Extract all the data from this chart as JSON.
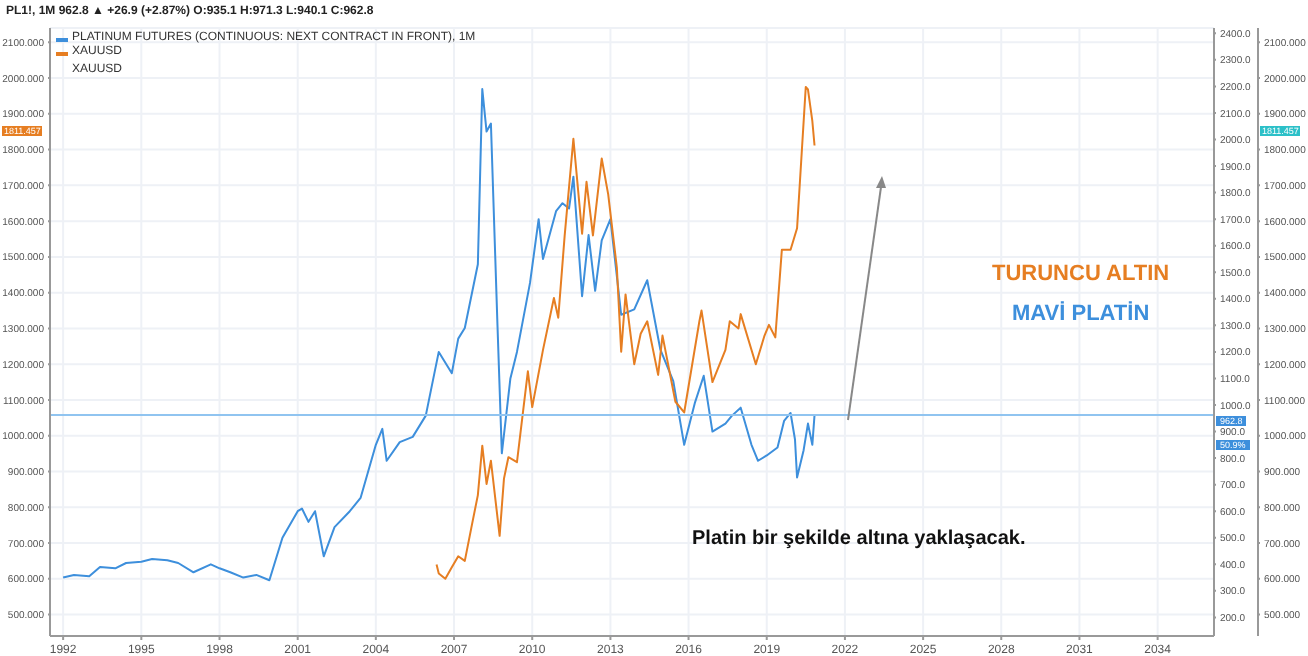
{
  "chart_data": {
    "type": "line",
    "subtitle": "PL1!, 1M 962.8 ▲ +26.9 (+2.87%) O:935.1 H:971.3 L:940.1 C:962.8",
    "xlim": [
      "1991-07",
      "2036-03"
    ],
    "xticks": [
      "1992",
      "1995",
      "1998",
      "2001",
      "2004",
      "2007",
      "2010",
      "2013",
      "2016",
      "2019",
      "2022",
      "2025",
      "2028",
      "2031",
      "2034"
    ],
    "ylim": [
      440,
      2140
    ],
    "yticks": [
      {
        "value": 500,
        "label": "500.000"
      },
      {
        "value": 600,
        "label": "600.000"
      },
      {
        "value": 700,
        "label": "700.000"
      },
      {
        "value": 800,
        "label": "800.000"
      },
      {
        "value": 900,
        "label": "900.000"
      },
      {
        "value": 1000,
        "label": "1000.000"
      },
      {
        "value": 1100,
        "label": "1100.000"
      },
      {
        "value": 1200,
        "label": "1200.000"
      },
      {
        "value": 1300,
        "label": "1300.000"
      },
      {
        "value": 1400,
        "label": "1400.000"
      },
      {
        "value": 1500,
        "label": "1500.000"
      },
      {
        "value": 1600,
        "label": "1600.000"
      },
      {
        "value": 1700,
        "label": "1700.000"
      },
      {
        "value": 1800,
        "label": "1800.000"
      },
      {
        "value": 1900,
        "label": "1900.000"
      },
      {
        "value": 2000,
        "label": "2000.000"
      },
      {
        "value": 2100,
        "label": "2100.000"
      }
    ],
    "y2lim": [
      130,
      2420
    ],
    "y2ticks": [
      {
        "value": 200,
        "label": "200.0"
      },
      {
        "value": 300,
        "label": "300.0"
      },
      {
        "value": 400,
        "label": "400.0"
      },
      {
        "value": 500,
        "label": "500.0"
      },
      {
        "value": 600,
        "label": "600.0"
      },
      {
        "value": 700,
        "label": "700.0"
      },
      {
        "value": 800,
        "label": "800.0"
      },
      {
        "value": 900,
        "label": "900.0"
      },
      {
        "value": 1000,
        "label": "1000.0"
      },
      {
        "value": 1100,
        "label": "1100.0"
      },
      {
        "value": 1200,
        "label": "1200.0"
      },
      {
        "value": 1300,
        "label": "1300.0"
      },
      {
        "value": 1400,
        "label": "1400.0"
      },
      {
        "value": 1500,
        "label": "1500.0"
      },
      {
        "value": 1600,
        "label": "1600.0"
      },
      {
        "value": 1700,
        "label": "1700.0"
      },
      {
        "value": 1800,
        "label": "1800.0"
      },
      {
        "value": 1900,
        "label": "1900.0"
      },
      {
        "value": 2000,
        "label": "2000.0"
      },
      {
        "value": 2100,
        "label": "2100.0"
      },
      {
        "value": 2200,
        "label": "2200.0"
      },
      {
        "value": 2300,
        "label": "2300.0"
      },
      {
        "value": 2400,
        "label": "2400.0"
      }
    ],
    "y3lim": [
      440,
      2140
    ],
    "y3ticks": [
      {
        "value": 500,
        "label": "500.000"
      },
      {
        "value": 600,
        "label": "600.000"
      },
      {
        "value": 700,
        "label": "700.000"
      },
      {
        "value": 800,
        "label": "800.000"
      },
      {
        "value": 900,
        "label": "900.000"
      },
      {
        "value": 1000,
        "label": "1000.000"
      },
      {
        "value": 1100,
        "label": "1100.000"
      },
      {
        "value": 1200,
        "label": "1200.000"
      },
      {
        "value": 1300,
        "label": "1300.000"
      },
      {
        "value": 1400,
        "label": "1400.000"
      },
      {
        "value": 1500,
        "label": "1500.000"
      },
      {
        "value": 1600,
        "label": "1600.000"
      },
      {
        "value": 1700,
        "label": "1700.000"
      },
      {
        "value": 1800,
        "label": "1800.000"
      },
      {
        "value": 1900,
        "label": "1900.000"
      },
      {
        "value": 2000,
        "label": "2000.000"
      },
      {
        "value": 2100,
        "label": "2100.000"
      }
    ],
    "grid": true,
    "legend": "top left",
    "series": [
      {
        "name": "PLATINUM FUTURES (CONTINUOUS: NEXT CONTRACT IN FRONT), 1M",
        "color": "#3d8fdc",
        "axis": "y2",
        "x": [
          "1992-01",
          "1992-06",
          "1993-01",
          "1993-06",
          "1994-01",
          "1994-06",
          "1995-01",
          "1995-06",
          "1996-01",
          "1996-06",
          "1997-01",
          "1997-09",
          "1998-01",
          "1998-06",
          "1998-12",
          "1999-06",
          "1999-12",
          "2000-06",
          "2001-01",
          "2001-03",
          "2001-06",
          "2001-09",
          "2002-01",
          "2002-06",
          "2003-01",
          "2003-06",
          "2004-01",
          "2004-04",
          "2004-06",
          "2004-12",
          "2005-06",
          "2005-12",
          "2006-04",
          "2006-06",
          "2006-12",
          "2007-03",
          "2007-06",
          "2007-12",
          "2008-02",
          "2008-04",
          "2008-06",
          "2008-09",
          "2008-11",
          "2009-03",
          "2009-06",
          "2009-12",
          "2010-04",
          "2010-06",
          "2010-12",
          "2011-03",
          "2011-06",
          "2011-08",
          "2011-12",
          "2012-03",
          "2012-06",
          "2012-09",
          "2013-01",
          "2013-06",
          "2013-12",
          "2014-06",
          "2014-12",
          "2015-06",
          "2015-11",
          "2016-04",
          "2016-08",
          "2016-12",
          "2017-06",
          "2017-09",
          "2018-01",
          "2018-06",
          "2018-09",
          "2019-01",
          "2019-06",
          "2019-09",
          "2019-12",
          "2020-02",
          "2020-03",
          "2020-06",
          "2020-08",
          "2020-10",
          "2020-11"
        ],
        "values": [
          350,
          360,
          355,
          390,
          385,
          405,
          410,
          420,
          415,
          405,
          370,
          400,
          385,
          370,
          350,
          360,
          340,
          500,
          600,
          610,
          560,
          600,
          430,
          540,
          600,
          650,
          850,
          910,
          790,
          860,
          880,
          960,
          1120,
          1200,
          1120,
          1250,
          1290,
          1530,
          2190,
          2030,
          2060,
          1300,
          818,
          1100,
          1200,
          1460,
          1700,
          1550,
          1730,
          1760,
          1740,
          1860,
          1410,
          1640,
          1430,
          1620,
          1700,
          1340,
          1360,
          1470,
          1210,
          1090,
          850,
          1010,
          1110,
          900,
          930,
          960,
          990,
          850,
          790,
          810,
          840,
          940,
          970,
          870,
          727,
          830,
          930,
          850,
          962.8
        ]
      },
      {
        "name": "XAUUSD",
        "color": "#e67e22",
        "x": [
          "2006-05",
          "2006-06",
          "2006-09",
          "2006-12",
          "2007-03",
          "2007-06",
          "2007-09",
          "2007-12",
          "2008-02",
          "2008-04",
          "2008-06",
          "2008-10",
          "2008-12",
          "2009-02",
          "2009-06",
          "2009-11",
          "2010-01",
          "2010-06",
          "2010-11",
          "2011-01",
          "2011-04",
          "2011-08",
          "2011-12",
          "2012-02",
          "2012-05",
          "2012-09",
          "2012-12",
          "2013-04",
          "2013-06",
          "2013-08",
          "2013-12",
          "2014-03",
          "2014-06",
          "2014-11",
          "2015-01",
          "2015-07",
          "2015-11",
          "2016-06",
          "2016-07",
          "2016-12",
          "2017-06",
          "2017-08",
          "2017-12",
          "2018-01",
          "2018-08",
          "2018-12",
          "2019-02",
          "2019-05",
          "2019-08",
          "2019-12",
          "2020-03",
          "2020-07",
          "2020-08",
          "2020-10",
          "2020-11"
        ],
        "values": [
          640,
          615,
          600,
          632,
          663,
          650,
          743,
          834,
          972,
          865,
          930,
          720,
          880,
          940,
          926,
          1180,
          1080,
          1240,
          1385,
          1330,
          1560,
          1830,
          1565,
          1710,
          1560,
          1775,
          1675,
          1470,
          1235,
          1395,
          1200,
          1285,
          1320,
          1170,
          1280,
          1095,
          1065,
          1320,
          1350,
          1150,
          1240,
          1320,
          1300,
          1340,
          1200,
          1280,
          1310,
          1275,
          1520,
          1520,
          1580,
          1975,
          1968,
          1880,
          1811.457
        ]
      }
    ],
    "ref_lines": [
      {
        "axis": "y2",
        "value": 962.8,
        "label": "962.8",
        "color": "#90c4f0"
      }
    ],
    "annotations": [
      "XAUUSD",
      "TURUNCU ALTIN",
      "MAVİ PLATİN",
      "Platin bir şekilde altına yaklaşacak.",
      "50.9%",
      "1811.457"
    ]
  }
}
